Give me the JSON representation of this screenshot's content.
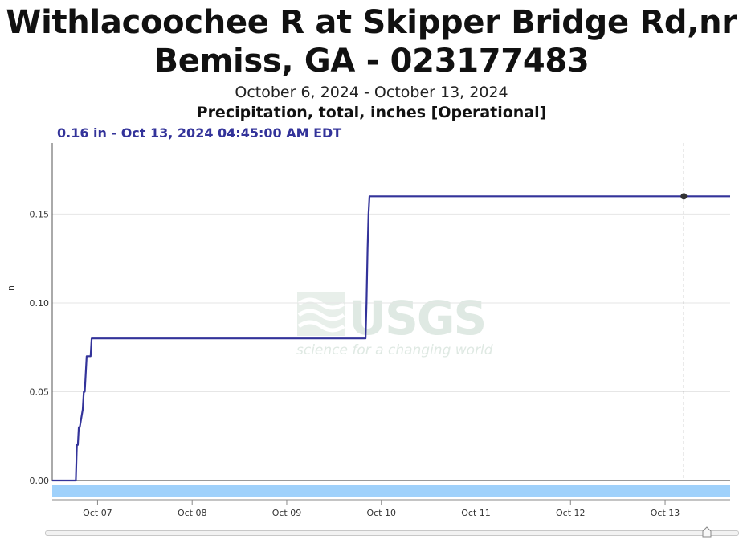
{
  "header": {
    "title_line1": "Withlacoochee R at Skipper Bridge Rd,nr",
    "title_line2": "Bemiss, GA - 023177483",
    "date_range": "October 6, 2024 - October 13, 2024",
    "parameter": "Precipitation, total, inches [Operational]",
    "hover_readout": "0.16 in - Oct 13, 2024 04:45:00 AM EDT"
  },
  "watermark": {
    "logo_text": "USGS",
    "tagline": "science for a changing world"
  },
  "colors": {
    "series": "#33339a",
    "marker": "#333333",
    "band": "#9fd1fb",
    "gridline": "#e6e6e6"
  },
  "chart_data": {
    "type": "line",
    "title": "Withlacoochee R at Skipper Bridge Rd,nr Bemiss, GA - 023177483",
    "subtitle": "October 6, 2024 - October 13, 2024",
    "ylabel": "in",
    "xlabel": "",
    "ylim": [
      0,
      0.19
    ],
    "xlim": [
      "2024-10-06T12:30",
      "2024-10-13T16:30"
    ],
    "yticks": [
      0.0,
      0.05,
      0.1,
      0.15
    ],
    "ytick_labels": [
      "0.00",
      "0.05",
      "0.10",
      "0.15"
    ],
    "xticks": [
      "2024-10-07T00:00",
      "2024-10-08T00:00",
      "2024-10-09T00:00",
      "2024-10-10T00:00",
      "2024-10-11T00:00",
      "2024-10-12T00:00",
      "2024-10-13T00:00"
    ],
    "xtick_labels": [
      "Oct 07",
      "Oct 08",
      "Oct 09",
      "Oct 10",
      "Oct 11",
      "Oct 12",
      "Oct 13"
    ],
    "grid": true,
    "series": [
      {
        "x": [
          "2024-10-06T12:30",
          "2024-10-06T18:30",
          "2024-10-06T18:45",
          "2024-10-06T19:00",
          "2024-10-06T19:15",
          "2024-10-06T19:30",
          "2024-10-06T20:15",
          "2024-10-06T20:30",
          "2024-10-06T20:45",
          "2024-10-06T21:00",
          "2024-10-06T21:15",
          "2024-10-06T21:30",
          "2024-10-06T21:45",
          "2024-10-06T22:15",
          "2024-10-06T22:30",
          "2024-10-09T20:00",
          "2024-10-09T20:15",
          "2024-10-09T20:30",
          "2024-10-09T20:45",
          "2024-10-09T21:00",
          "2024-10-13T04:45",
          "2024-10-13T16:30"
        ],
        "y": [
          0.0,
          0.0,
          0.02,
          0.02,
          0.03,
          0.03,
          0.04,
          0.05,
          0.05,
          0.06,
          0.07,
          0.07,
          0.07,
          0.07,
          0.08,
          0.08,
          0.1,
          0.13,
          0.15,
          0.16,
          0.16,
          0.16
        ]
      }
    ],
    "highlight_point": {
      "x": "2024-10-13T04:45",
      "y": 0.16
    }
  }
}
